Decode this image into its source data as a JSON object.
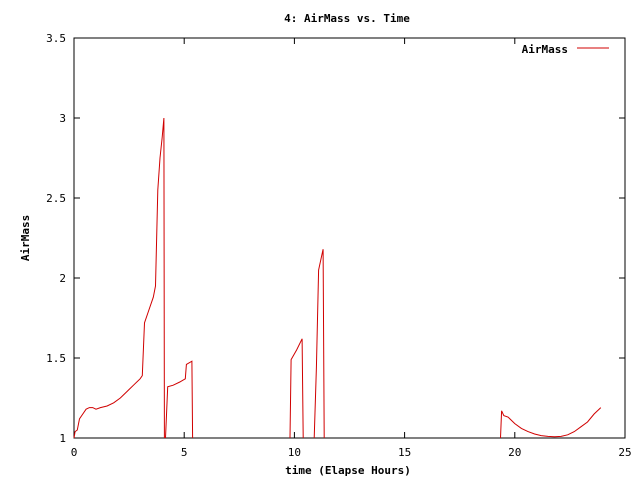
{
  "chart_data": {
    "type": "line",
    "title": "4: AirMass vs. Time",
    "xlabel": "time (Elapse Hours)",
    "ylabel": "AirMass",
    "xlim": [
      0,
      25
    ],
    "ylim": [
      1,
      3.5
    ],
    "xticks": [
      0,
      5,
      10,
      15,
      20,
      25
    ],
    "yticks": [
      1,
      1.5,
      2,
      2.5,
      3,
      3.5
    ],
    "xtick_labels": [
      "0",
      "5",
      "10",
      "15",
      "20",
      "25"
    ],
    "ytick_labels": [
      "1",
      "1.5",
      "2",
      "2.5",
      "3",
      "3.5"
    ],
    "grid": false,
    "legend": {
      "position": "top-right"
    },
    "series": [
      {
        "name": "AirMass",
        "color": "#d00000",
        "segments": [
          [
            [
              0.0,
              1.0
            ],
            [
              0.05,
              1.04
            ],
            [
              0.15,
              1.05
            ],
            [
              0.25,
              1.12
            ],
            [
              0.4,
              1.15
            ],
            [
              0.55,
              1.18
            ],
            [
              0.7,
              1.19
            ],
            [
              0.85,
              1.19
            ],
            [
              1.0,
              1.18
            ],
            [
              1.2,
              1.19
            ],
            [
              1.5,
              1.2
            ],
            [
              1.8,
              1.22
            ],
            [
              2.1,
              1.25
            ],
            [
              2.4,
              1.29
            ],
            [
              2.7,
              1.33
            ],
            [
              3.0,
              1.37
            ],
            [
              3.1,
              1.39
            ],
            [
              3.2,
              1.72
            ],
            [
              3.4,
              1.8
            ],
            [
              3.6,
              1.88
            ],
            [
              3.7,
              1.95
            ],
            [
              3.8,
              2.55
            ],
            [
              3.9,
              2.75
            ],
            [
              4.0,
              2.88
            ],
            [
              4.08,
              3.0
            ],
            [
              4.1,
              1.0
            ]
          ],
          [
            [
              4.15,
              1.0
            ],
            [
              4.25,
              1.32
            ],
            [
              4.5,
              1.33
            ],
            [
              4.8,
              1.35
            ],
            [
              5.05,
              1.37
            ],
            [
              5.1,
              1.46
            ],
            [
              5.35,
              1.48
            ],
            [
              5.38,
              1.0
            ]
          ],
          [
            [
              9.8,
              1.0
            ],
            [
              9.85,
              1.49
            ],
            [
              10.1,
              1.55
            ],
            [
              10.35,
              1.62
            ],
            [
              10.4,
              1.0
            ]
          ],
          [
            [
              10.9,
              1.0
            ],
            [
              11.0,
              1.44
            ],
            [
              11.1,
              2.05
            ],
            [
              11.3,
              2.18
            ],
            [
              11.35,
              1.0
            ]
          ],
          [
            [
              19.35,
              1.0
            ],
            [
              19.4,
              1.17
            ],
            [
              19.5,
              1.14
            ],
            [
              19.7,
              1.13
            ],
            [
              20.0,
              1.09
            ],
            [
              20.3,
              1.06
            ],
            [
              20.6,
              1.04
            ],
            [
              20.9,
              1.025
            ],
            [
              21.2,
              1.015
            ],
            [
              21.5,
              1.01
            ],
            [
              21.8,
              1.008
            ],
            [
              22.1,
              1.01
            ],
            [
              22.4,
              1.02
            ],
            [
              22.7,
              1.04
            ],
            [
              23.0,
              1.07
            ],
            [
              23.3,
              1.1
            ],
            [
              23.6,
              1.15
            ],
            [
              23.9,
              1.19
            ]
          ]
        ]
      }
    ]
  }
}
